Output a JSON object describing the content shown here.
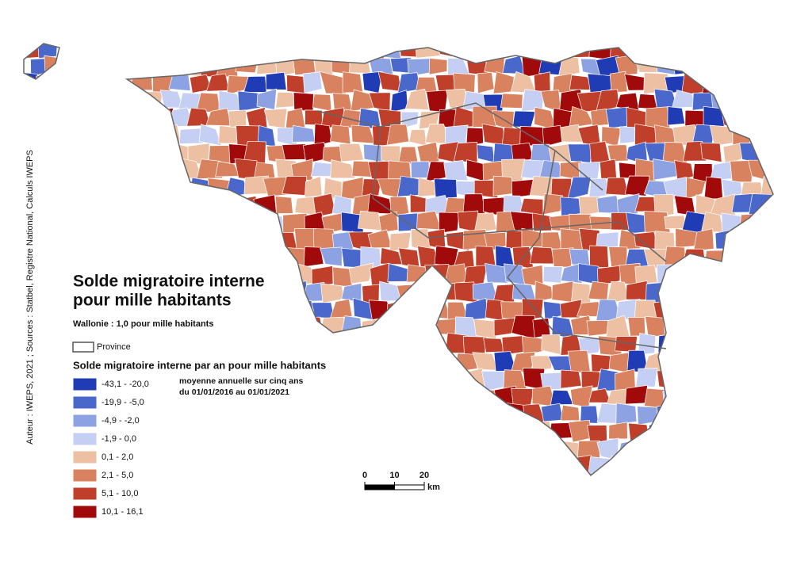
{
  "title_lines": [
    "Solde migratoire interne",
    "pour mille habitants"
  ],
  "subtitle": "Wallonie : 1,0 pour mille habitants",
  "province_label": "Province",
  "legend": {
    "title": "Solde migratoire interne par an pour mille habitants",
    "note_lines": [
      "moyenne annuelle sur cinq ans",
      "du 01/01/2016 au 01/01/2021"
    ],
    "classes": [
      {
        "label": "-43,1 - -20,0",
        "color": "#1f3cb4"
      },
      {
        "label": "-19,9 - -5,0",
        "color": "#4a68cc"
      },
      {
        "label": "-4,9 - -2,0",
        "color": "#8da2e3"
      },
      {
        "label": "-1,9 - 0,0",
        "color": "#c5cff3"
      },
      {
        "label": "0,1 - 2,0",
        "color": "#edc0a3"
      },
      {
        "label": "2,1 - 5,0",
        "color": "#d9825f"
      },
      {
        "label": "5,1 - 10,0",
        "color": "#bf3f2a"
      },
      {
        "label": "10,1 - 16,1",
        "color": "#a10a0a"
      }
    ]
  },
  "scale": {
    "ticks": [
      0,
      10,
      20
    ],
    "unit": "km"
  },
  "source": "Auteur : IWEPS, 2021 ; Sources : Statbel, Registre National, Calculs IWEPS"
}
